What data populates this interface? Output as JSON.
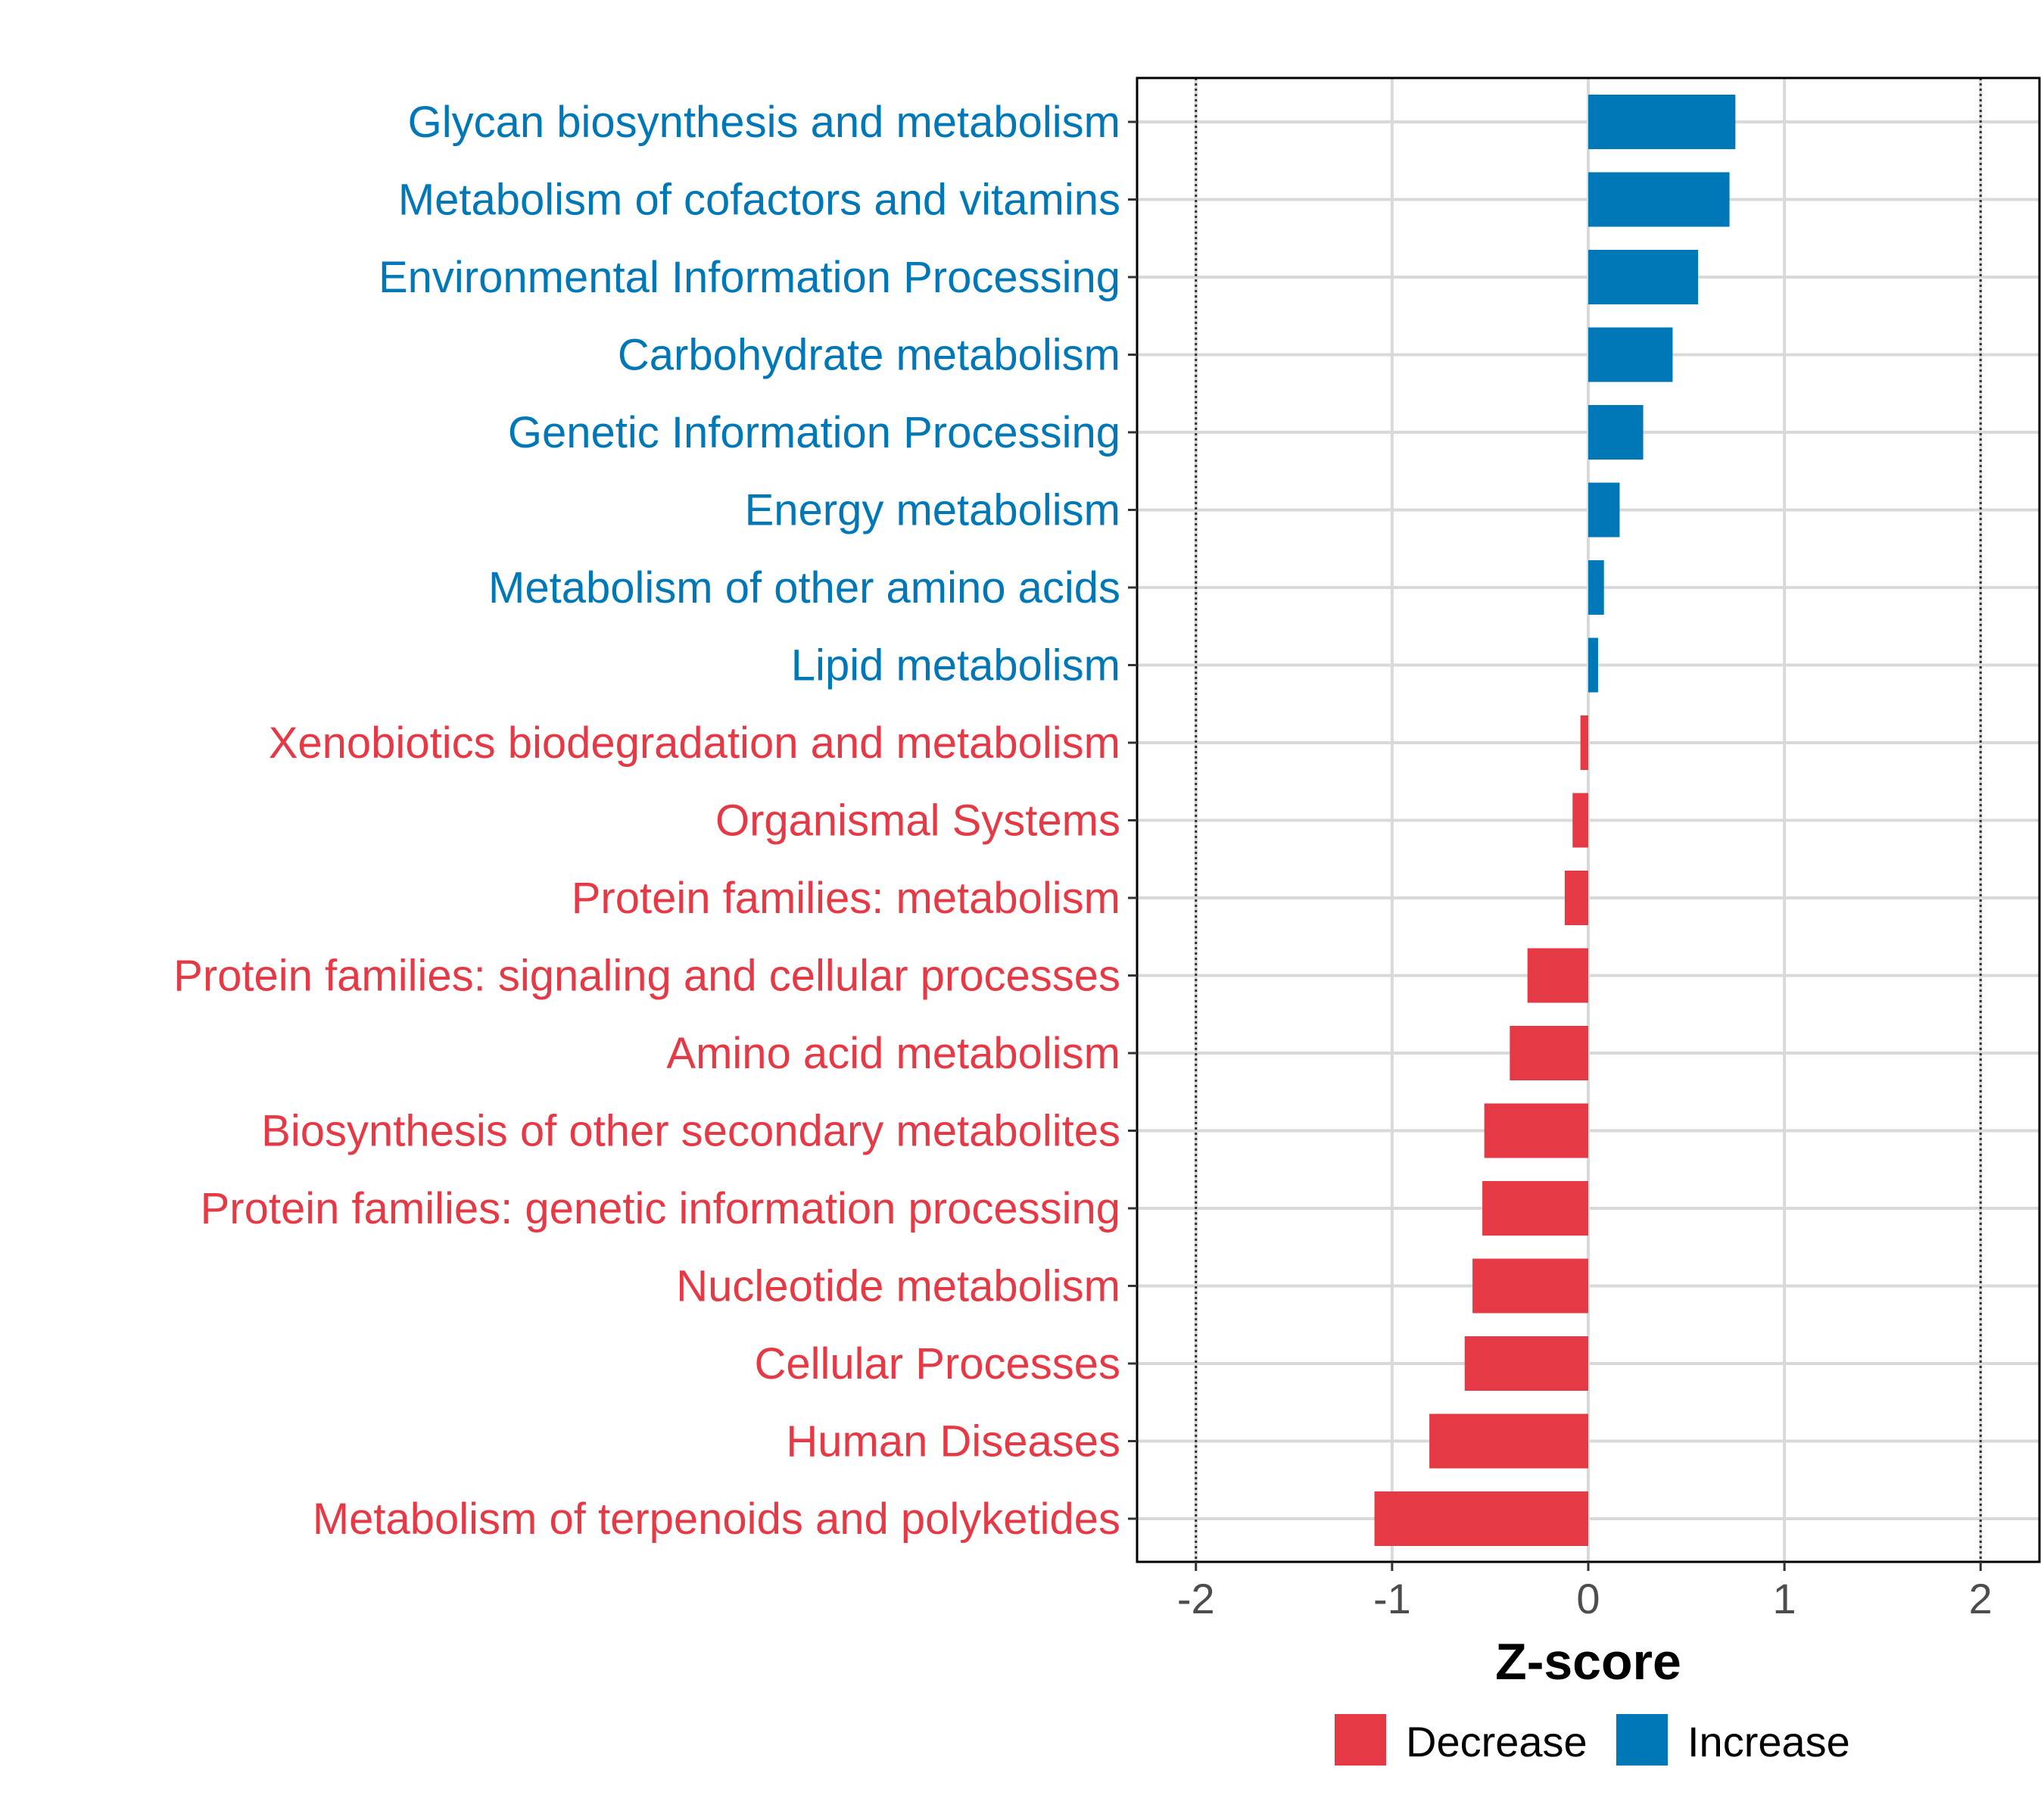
{
  "chart_data": {
    "type": "bar",
    "orientation": "horizontal",
    "xlabel": "Z-score",
    "xlim": [
      -2.3,
      2.3
    ],
    "xticks": [
      -2,
      -1,
      0,
      1,
      2
    ],
    "xtick_labels": [
      "-2",
      "-1",
      "0",
      "1",
      "2"
    ],
    "reference_lines": [
      -2,
      2
    ],
    "grid": true,
    "categories": [
      "Glycan biosynthesis and metabolism",
      "Metabolism of cofactors and vitamins",
      "Environmental Information Processing",
      "Carbohydrate metabolism",
      "Genetic Information Processing",
      "Energy metabolism",
      "Metabolism of other amino acids",
      "Lipid metabolism",
      "Xenobiotics biodegradation and metabolism",
      "Organismal Systems",
      "Protein families: metabolism",
      "Protein families: signaling and cellular processes",
      "Amino acid metabolism",
      "Biosynthesis of other secondary metabolites",
      "Protein families: genetic information processing",
      "Nucleotide metabolism",
      "Cellular Processes",
      "Human Diseases",
      "Metabolism of terpenoids and polyketides"
    ],
    "values": [
      0.75,
      0.72,
      0.56,
      0.43,
      0.28,
      0.16,
      0.08,
      0.05,
      -0.04,
      -0.08,
      -0.12,
      -0.31,
      -0.4,
      -0.53,
      -0.54,
      -0.59,
      -0.63,
      -0.81,
      -1.09
    ],
    "groups": [
      "Increase",
      "Increase",
      "Increase",
      "Increase",
      "Increase",
      "Increase",
      "Increase",
      "Increase",
      "Decrease",
      "Decrease",
      "Decrease",
      "Decrease",
      "Decrease",
      "Decrease",
      "Decrease",
      "Decrease",
      "Decrease",
      "Decrease",
      "Decrease"
    ],
    "colors": {
      "Increase": "#0077b6",
      "Decrease": "#e63946"
    },
    "legend": {
      "position": "bottom",
      "entries": [
        {
          "label": "Decrease",
          "color": "#e63946"
        },
        {
          "label": "Increase",
          "color": "#0077b6"
        }
      ]
    }
  }
}
